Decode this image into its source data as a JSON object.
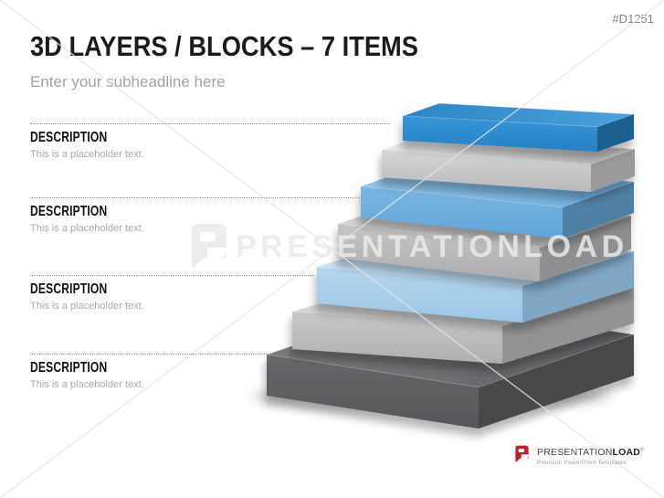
{
  "page": {
    "code": "#D1251"
  },
  "header": {
    "title": "3D LAYERS / BLOCKS – 7 ITEMS",
    "subheadline": "Enter your subheadline here"
  },
  "items": [
    {
      "heading": "DESCRIPTION",
      "body": "This is a placeholder text."
    },
    {
      "heading": "DESCRIPTION",
      "body": "This is a placeholder text."
    },
    {
      "heading": "DESCRIPTION",
      "body": "This is a placeholder text."
    },
    {
      "heading": "DESCRIPTION",
      "body": "This is a placeholder text."
    }
  ],
  "diagram": {
    "block_count": 7,
    "blocks": [
      {
        "name": "layer-1-blue",
        "colors": {
          "top_a": "#2d85c4",
          "top_b": "#4aa2dc",
          "front_a": "#3a96d9",
          "front_b": "#2481c3",
          "side": "#1e6190"
        }
      },
      {
        "name": "layer-2-silver",
        "colors": {
          "top_a": "#e8e8e8",
          "top_b": "#b9b9bb",
          "front_a": "#d6d6d6",
          "front_b": "#b9b9bb",
          "side": "#9a9a9c"
        }
      },
      {
        "name": "layer-3-mid-blue",
        "colors": {
          "top_a": "#91c4e9",
          "top_b": "#6cacdc",
          "front_a": "#7ab6e3",
          "front_b": "#60a5d8",
          "side": "#507fa3"
        }
      },
      {
        "name": "layer-4-gray",
        "colors": {
          "top_a": "#d3d3d3",
          "top_b": "#afafb1",
          "front_a": "#c6c6c6",
          "front_b": "#acacae",
          "side": "#8f8f91"
        }
      },
      {
        "name": "layer-5-light-blue",
        "colors": {
          "top_a": "#c9e1f3",
          "top_b": "#a5cce8",
          "front_a": "#b5d6ee",
          "front_b": "#9cc6e5",
          "side": "#81a6c3"
        }
      },
      {
        "name": "layer-6-light-gray",
        "colors": {
          "top_a": "#d8d8d8",
          "top_b": "#b4b4b6",
          "front_a": "#c8c8c8",
          "front_b": "#afafb1",
          "side": "#939395"
        }
      },
      {
        "name": "layer-7-dark-gray",
        "colors": {
          "top_a": "#7a7a7d",
          "top_b": "#606063",
          "front_a": "#68686b",
          "front_b": "#565659",
          "side": "#4a4a4c"
        }
      }
    ]
  },
  "watermark": {
    "brand": "PRESENTATIONLOAD"
  },
  "brand_footer": {
    "name_regular": "PRESENTATION",
    "name_bold": "LOAD",
    "registered": "®",
    "tagline": "Premium PowerPoint Templates"
  }
}
